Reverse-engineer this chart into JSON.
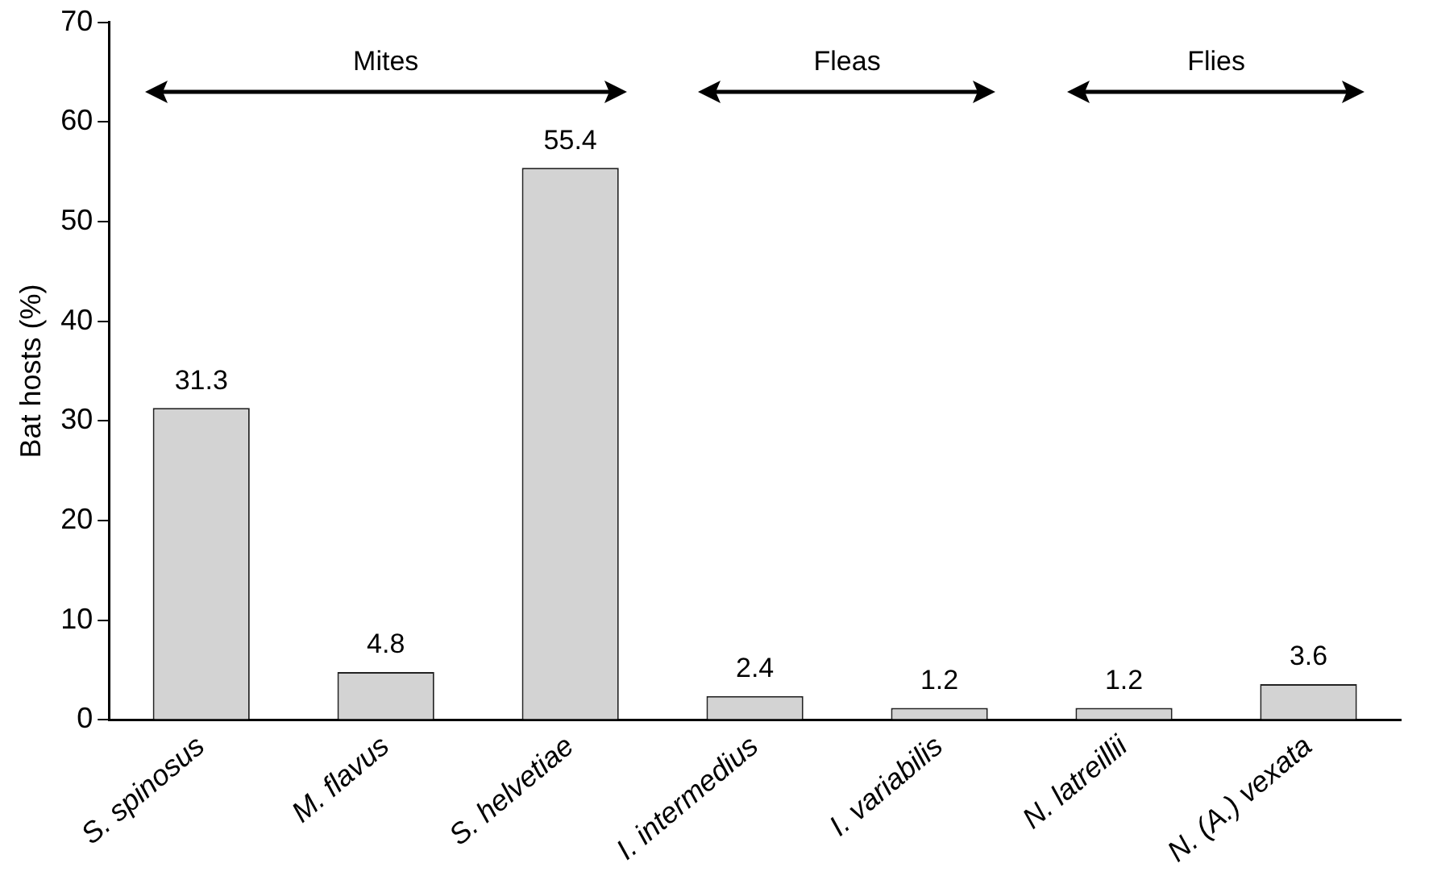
{
  "chart_data": {
    "type": "bar",
    "ylabel": "Bat hosts (%)",
    "categories": [
      "S. spinosus",
      "M. flavus",
      "S. helvetiae",
      "I. intermedius",
      "I. variabilis",
      "N. latreillii",
      "N. (A.) vexata"
    ],
    "values": [
      31.3,
      4.8,
      55.4,
      2.4,
      1.2,
      1.2,
      3.6
    ],
    "color": "#d3d3d3",
    "ylim": [
      0,
      70
    ],
    "yticks": [
      0,
      10,
      20,
      30,
      40,
      50,
      60,
      70
    ],
    "grid": false,
    "legend": false,
    "data_labels": true,
    "annotations": [
      "Mites",
      "Fleas",
      "Flies"
    ]
  }
}
